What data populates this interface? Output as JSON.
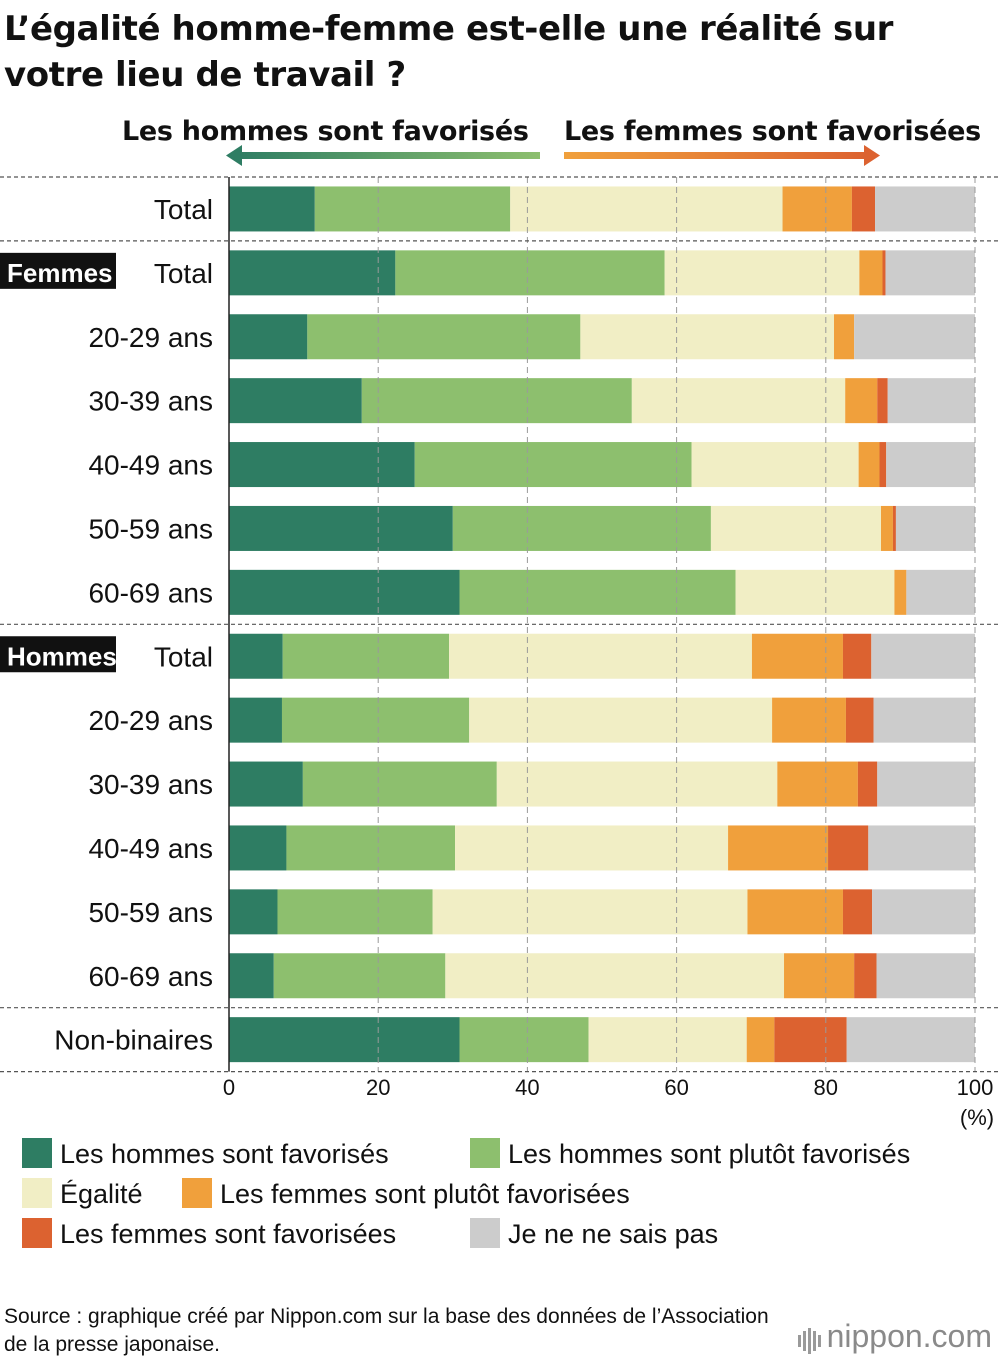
{
  "title": "L’égalité homme-femme est-elle une réalité sur votre lieu de travail ?",
  "direction": {
    "men_favored": "Les hommes sont favorisés",
    "women_favored": "Les femmes sont favorisées"
  },
  "group_badges": {
    "women": "Femmes",
    "men": "Hommes"
  },
  "colors": {
    "men_favored": "#2e7d63",
    "men_rather_favored": "#8dbf6e",
    "equality": "#f1eec5",
    "women_rather_favored": "#f0a03c",
    "women_favored": "#dc6230",
    "dont_know": "#cccccc"
  },
  "legend": [
    {
      "label": "Les hommes sont favorisés",
      "color": "#2e7d63"
    },
    {
      "label": "Les hommes sont plutôt favorisés",
      "color": "#8dbf6e"
    },
    {
      "label": "Égalité",
      "color": "#f1eec5"
    },
    {
      "label": "Les femmes sont plutôt favorisées",
      "color": "#f0a03c"
    },
    {
      "label": "Les femmes sont favorisées",
      "color": "#dc6230"
    },
    {
      "label": "Je ne ne sais pas",
      "color": "#cccccc"
    }
  ],
  "chart_data": {
    "type": "bar",
    "orientation": "horizontal",
    "stacked": true,
    "xlabel": "(%)",
    "xlim": [
      0,
      100
    ],
    "xticks": [
      0,
      20,
      40,
      60,
      80,
      100
    ],
    "grid": true,
    "series_names": [
      "Les hommes sont favorisés",
      "Les hommes sont plutôt favorisés",
      "Égalité",
      "Les femmes sont plutôt favorisées",
      "Les femmes sont favorisées",
      "Je ne ne sais pas"
    ],
    "rows": [
      {
        "group": "",
        "label": "Total",
        "values": [
          11.5,
          26.2,
          36.5,
          9.3,
          3.1,
          13.4
        ]
      },
      {
        "group": "Femmes",
        "label": "Total",
        "values": [
          22.3,
          36.1,
          26.1,
          3.1,
          0.4,
          12.0
        ]
      },
      {
        "group": "Femmes",
        "label": "20-29 ans",
        "values": [
          10.5,
          36.6,
          34.0,
          2.7,
          0.0,
          16.2
        ]
      },
      {
        "group": "Femmes",
        "label": "30-39 ans",
        "values": [
          17.8,
          36.2,
          28.6,
          4.3,
          1.4,
          11.7
        ]
      },
      {
        "group": "Femmes",
        "label": "40-49 ans",
        "values": [
          24.9,
          37.1,
          22.4,
          2.8,
          0.9,
          11.9
        ]
      },
      {
        "group": "Femmes",
        "label": "50-59 ans",
        "values": [
          30.0,
          34.6,
          22.8,
          1.6,
          0.4,
          10.6
        ]
      },
      {
        "group": "Femmes",
        "label": "60-69 ans",
        "values": [
          30.9,
          37.0,
          21.3,
          1.6,
          0.0,
          9.2
        ]
      },
      {
        "group": "Hommes",
        "label": "Total",
        "values": [
          7.2,
          22.3,
          40.6,
          12.2,
          3.8,
          13.9
        ]
      },
      {
        "group": "Hommes",
        "label": "20-29 ans",
        "values": [
          7.1,
          25.1,
          40.6,
          9.9,
          3.7,
          13.6
        ]
      },
      {
        "group": "Hommes",
        "label": "30-39 ans",
        "values": [
          9.9,
          26.0,
          37.6,
          10.8,
          2.6,
          13.1
        ]
      },
      {
        "group": "Hommes",
        "label": "40-49 ans",
        "values": [
          7.7,
          22.6,
          36.6,
          13.4,
          5.4,
          14.3
        ]
      },
      {
        "group": "Hommes",
        "label": "50-59 ans",
        "values": [
          6.5,
          20.8,
          42.2,
          12.8,
          3.9,
          13.8
        ]
      },
      {
        "group": "Hommes",
        "label": "60-69 ans",
        "values": [
          6.0,
          23.0,
          45.4,
          9.4,
          3.0,
          13.2
        ]
      },
      {
        "group": "",
        "label": "Non-binaires",
        "values": [
          30.9,
          17.3,
          21.2,
          3.7,
          9.7,
          17.2
        ]
      }
    ]
  },
  "source": "Source : graphique créé par Nippon.com sur la base des données de l’Association de la presse japonaise.",
  "brand": {
    "name": "nippon",
    "suffix": ".com"
  }
}
